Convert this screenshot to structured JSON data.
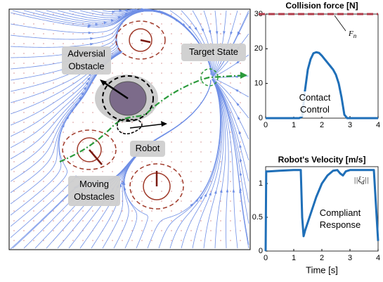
{
  "chart_data": [
    {
      "type": "line",
      "title": "Collision force [N]",
      "x": [
        0,
        1.2,
        1.3,
        1.4,
        1.5,
        1.6,
        1.7,
        1.8,
        1.9,
        2.0,
        2.1,
        2.2,
        2.3,
        2.4,
        2.5,
        2.6,
        2.7,
        2.8,
        2.9,
        4
      ],
      "series": [
        {
          "color": "#1f6fb8",
          "values": [
            0,
            0,
            0.5,
            8,
            14,
            17,
            18.7,
            19,
            18.8,
            18,
            17,
            16,
            15,
            14,
            12.5,
            10,
            6,
            1,
            0,
            0
          ]
        }
      ],
      "xlim": [
        0,
        4
      ],
      "xticks": [
        0,
        1,
        2,
        3,
        4
      ],
      "ylim": [
        0,
        30
      ],
      "yticks": [
        0,
        10,
        20,
        30
      ],
      "hlines": [
        {
          "value": 30,
          "color": "#b03a48",
          "label": {
            "main": "F",
            "sub": "n"
          }
        }
      ],
      "annotations": [
        [
          "Contact",
          "Control"
        ]
      ]
    },
    {
      "type": "line",
      "title": "Robot's Velocity [m/s]",
      "xlabel": "Time [s]",
      "x": [
        0,
        0.02,
        0.1,
        0.5,
        1.0,
        1.25,
        1.3,
        1.35,
        1.4,
        1.6,
        1.8,
        2.0,
        2.2,
        2.4,
        2.55,
        2.65,
        2.75,
        2.85,
        3.0,
        3.5,
        3.85,
        3.95,
        4.0
      ],
      "series": [
        {
          "color": "#1f6fb8",
          "values": [
            0,
            1.18,
            1.18,
            1.19,
            1.2,
            1.2,
            0.5,
            0.22,
            0.3,
            0.55,
            0.8,
            1.0,
            1.12,
            1.19,
            1.2,
            1.15,
            1.12,
            1.18,
            1.2,
            1.2,
            1.2,
            0.5,
            0.15
          ]
        }
      ],
      "xlim": [
        0,
        4
      ],
      "xticks": [
        0,
        1,
        2,
        3,
        4
      ],
      "ylim": [
        0,
        1.25
      ],
      "yticks": [
        0,
        0.5,
        1
      ],
      "series_label": {
        "pre": "||ξ̇",
        "sub": "d",
        "post": "||"
      },
      "annotations": [
        [
          "Compliant",
          "Response"
        ]
      ]
    }
  ],
  "diagram": {
    "labels": [
      [
        "Adversial",
        "Obstacle"
      ],
      [
        "Target State"
      ],
      [
        "Robot"
      ],
      [
        "Moving",
        "Obstacles"
      ]
    ]
  }
}
